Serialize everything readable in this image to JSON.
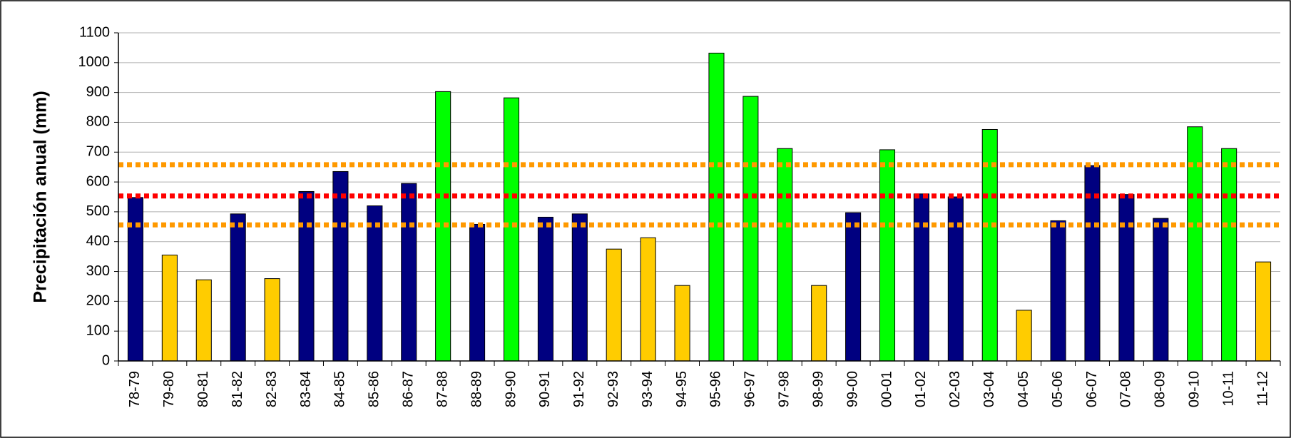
{
  "chart_data": {
    "type": "bar",
    "y_label": "Precipitación anual (mm)",
    "categories": [
      "78-79",
      "79-80",
      "80-81",
      "81-82",
      "82-83",
      "83-84",
      "84-85",
      "85-86",
      "86-87",
      "87-88",
      "88-89",
      "89-90",
      "90-91",
      "91-92",
      "92-93",
      "93-94",
      "94-95",
      "95-96",
      "96-97",
      "97-98",
      "98-99",
      "99-00",
      "00-01",
      "01-02",
      "02-03",
      "03-04",
      "04-05",
      "05-06",
      "06-07",
      "07-08",
      "08-09",
      "09-10",
      "10-11",
      "11-12"
    ],
    "values": [
      548,
      355,
      272,
      493,
      276,
      568,
      635,
      520,
      595,
      903,
      458,
      882,
      482,
      493,
      375,
      413,
      253,
      1032,
      887,
      712,
      253,
      497,
      708,
      560,
      550,
      776,
      170,
      470,
      655,
      558,
      478,
      785,
      712,
      332
    ],
    "colors": [
      "#000080",
      "#ffcc00",
      "#ffcc00",
      "#000080",
      "#ffcc00",
      "#000080",
      "#000080",
      "#000080",
      "#000080",
      "#00ff00",
      "#000080",
      "#00ff00",
      "#000080",
      "#000080",
      "#ffcc00",
      "#ffcc00",
      "#ffcc00",
      "#00ff00",
      "#00ff00",
      "#00ff00",
      "#ffcc00",
      "#000080",
      "#00ff00",
      "#000080",
      "#000080",
      "#00ff00",
      "#ffcc00",
      "#000080",
      "#000080",
      "#000080",
      "#000080",
      "#00ff00",
      "#00ff00",
      "#ffcc00"
    ],
    "reference_lines": [
      {
        "value": 658,
        "color": "#ff9900"
      },
      {
        "value": 553,
        "color": "#ff0000"
      },
      {
        "value": 456,
        "color": "#ff9900"
      }
    ],
    "ylim": [
      0,
      1100
    ],
    "yticks": [
      0,
      100,
      200,
      300,
      400,
      500,
      600,
      700,
      800,
      900,
      1000,
      1100
    ],
    "grid": true
  }
}
